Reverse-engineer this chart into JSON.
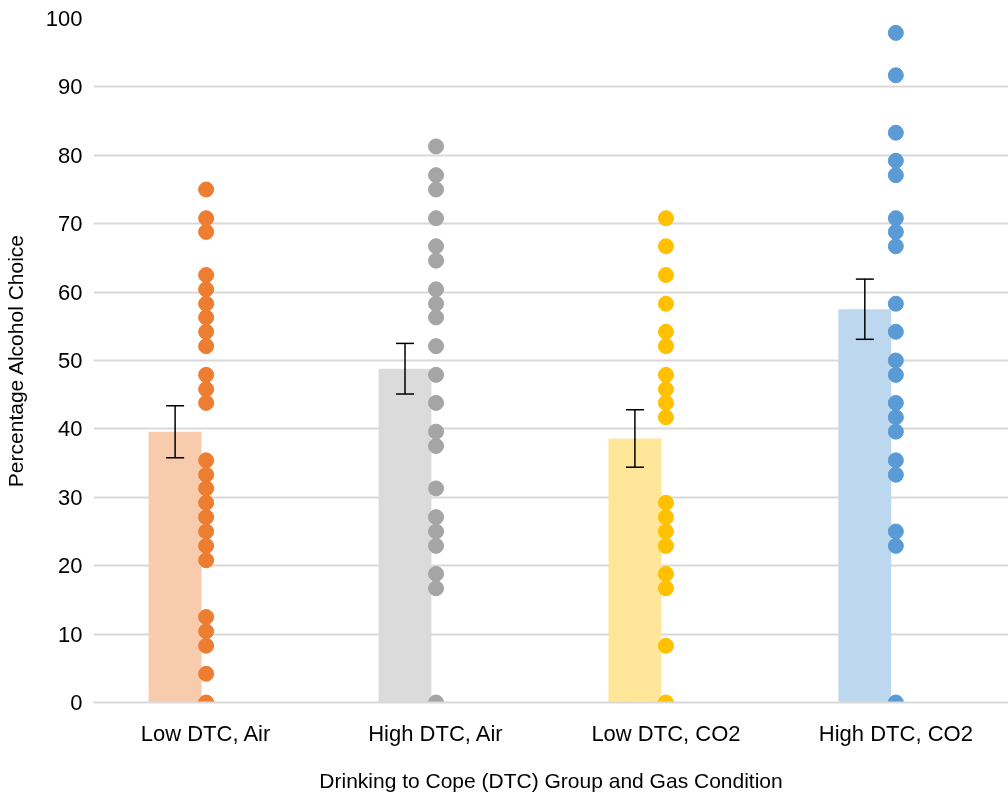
{
  "chart_data": {
    "type": "bar",
    "xlabel": "Drinking to Cope (DTC) Group and Gas Condition",
    "ylabel": "Percentage Alcohol Choice",
    "categories": [
      "Low DTC, Air",
      "High DTC, Air",
      "Low DTC, CO2",
      "High DTC, CO2"
    ],
    "ylim": [
      0,
      100
    ],
    "yticks": [
      0,
      10,
      20,
      30,
      40,
      50,
      60,
      70,
      80,
      90,
      100
    ],
    "grid": "y",
    "marker": "circle",
    "series": [
      {
        "values": [
          39.6,
          48.8,
          38.6,
          57.5
        ],
        "colors": [
          "#f8cbad",
          "#dbdbdb",
          "#ffe699",
          "#bdd7ee"
        ],
        "errors": [
          3.8,
          3.7,
          4.2,
          4.4
        ]
      },
      {
        "type": "scatter",
        "color": "#ed7d31",
        "x": [
          "Low DTC, Air",
          "Low DTC, Air",
          "Low DTC, Air",
          "Low DTC, Air",
          "Low DTC, Air",
          "Low DTC, Air",
          "Low DTC, Air",
          "Low DTC, Air",
          "Low DTC, Air",
          "Low DTC, Air",
          "Low DTC, Air",
          "Low DTC, Air",
          "Low DTC, Air",
          "Low DTC, Air",
          "Low DTC, Air",
          "Low DTC, Air",
          "Low DTC, Air",
          "Low DTC, Air",
          "Low DTC, Air",
          "Low DTC, Air",
          "Low DTC, Air",
          "Low DTC, Air",
          "Low DTC, Air",
          "Low DTC, Air",
          "Low DTC, Air"
        ],
        "values": [
          75,
          70.8,
          68.8,
          62.5,
          60.4,
          58.3,
          56.3,
          54.2,
          52.1,
          47.9,
          45.8,
          43.8,
          35.4,
          33.3,
          31.3,
          29.2,
          27.1,
          25,
          22.9,
          20.8,
          12.5,
          10.4,
          8.3,
          4.2,
          0
        ]
      },
      {
        "type": "scatter",
        "color": "#a5a5a5",
        "x": [
          "High DTC, Air",
          "High DTC, Air",
          "High DTC, Air",
          "High DTC, Air",
          "High DTC, Air",
          "High DTC, Air",
          "High DTC, Air",
          "High DTC, Air",
          "High DTC, Air",
          "High DTC, Air",
          "High DTC, Air",
          "High DTC, Air",
          "High DTC, Air",
          "High DTC, Air",
          "High DTC, Air",
          "High DTC, Air",
          "High DTC, Air",
          "High DTC, Air",
          "High DTC, Air",
          "High DTC, Air",
          "High DTC, Air"
        ],
        "values": [
          81.3,
          77.1,
          75,
          70.8,
          66.7,
          64.6,
          60.4,
          58.3,
          56.3,
          52.1,
          47.9,
          43.8,
          39.6,
          37.5,
          31.3,
          27.1,
          25,
          22.9,
          18.8,
          16.7,
          0
        ]
      },
      {
        "type": "scatter",
        "color": "#ffc000",
        "x": [
          "Low DTC, CO2",
          "Low DTC, CO2",
          "Low DTC, CO2",
          "Low DTC, CO2",
          "Low DTC, CO2",
          "Low DTC, CO2",
          "Low DTC, CO2",
          "Low DTC, CO2",
          "Low DTC, CO2",
          "Low DTC, CO2",
          "Low DTC, CO2",
          "Low DTC, CO2",
          "Low DTC, CO2",
          "Low DTC, CO2",
          "Low DTC, CO2",
          "Low DTC, CO2",
          "Low DTC, CO2",
          "Low DTC, CO2"
        ],
        "values": [
          70.8,
          66.7,
          62.5,
          58.3,
          54.2,
          52.1,
          47.9,
          45.8,
          43.8,
          41.7,
          29.2,
          27.1,
          25,
          22.9,
          18.8,
          16.7,
          8.3,
          0
        ]
      },
      {
        "type": "scatter",
        "color": "#5b9bd5",
        "x": [
          "High DTC, CO2",
          "High DTC, CO2",
          "High DTC, CO2",
          "High DTC, CO2",
          "High DTC, CO2",
          "High DTC, CO2",
          "High DTC, CO2",
          "High DTC, CO2",
          "High DTC, CO2",
          "High DTC, CO2",
          "High DTC, CO2",
          "High DTC, CO2",
          "High DTC, CO2",
          "High DTC, CO2",
          "High DTC, CO2",
          "High DTC, CO2",
          "High DTC, CO2",
          "High DTC, CO2",
          "High DTC, CO2",
          "High DTC, CO2"
        ],
        "values": [
          97.9,
          91.7,
          83.3,
          79.2,
          77.1,
          70.8,
          68.8,
          66.7,
          58.3,
          54.2,
          50,
          47.9,
          43.8,
          41.7,
          39.6,
          35.4,
          33.3,
          25,
          22.9,
          0
        ]
      }
    ]
  }
}
